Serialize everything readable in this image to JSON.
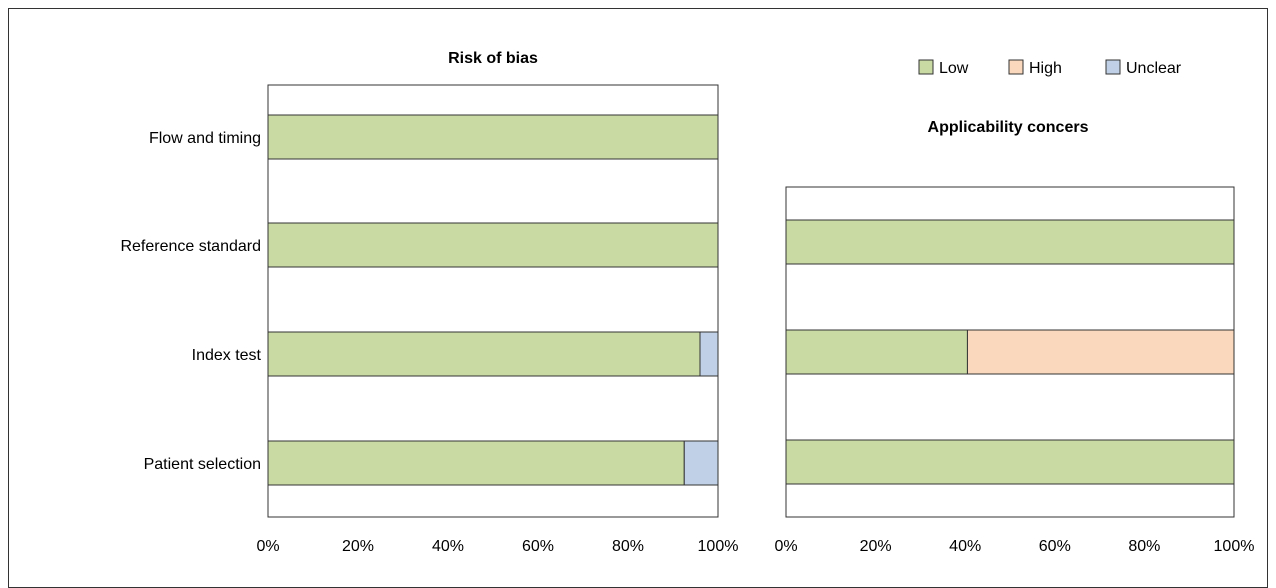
{
  "legend": {
    "items": [
      {
        "label": "Low",
        "color": "#c9dba3"
      },
      {
        "label": "High",
        "color": "#fad8bd"
      },
      {
        "label": "Unclear",
        "color": "#c0d0e6"
      }
    ]
  },
  "chart_data": [
    {
      "type": "bar",
      "orientation": "horizontal",
      "stacked": true,
      "title": "Risk of bias",
      "categories": [
        "Flow and timing",
        "Reference standard",
        "Index test",
        "Patient selection"
      ],
      "series": [
        {
          "name": "Low",
          "values": [
            100,
            100,
            96,
            92.5
          ]
        },
        {
          "name": "High",
          "values": [
            0,
            0,
            0,
            0
          ]
        },
        {
          "name": "Unclear",
          "values": [
            0,
            0,
            4,
            7.5
          ]
        }
      ],
      "xlim": [
        0,
        100
      ],
      "xticks": [
        "0%",
        "20%",
        "40%",
        "60%",
        "80%",
        "100%"
      ],
      "grid": false
    },
    {
      "type": "bar",
      "orientation": "horizontal",
      "stacked": true,
      "title": "Applicability concers",
      "categories": [
        "Reference standard",
        "Index test",
        "Patient selection"
      ],
      "series": [
        {
          "name": "Low",
          "values": [
            100,
            40.5,
            100
          ]
        },
        {
          "name": "High",
          "values": [
            0,
            59.5,
            0
          ]
        },
        {
          "name": "Unclear",
          "values": [
            0,
            0,
            0
          ]
        }
      ],
      "xlim": [
        0,
        100
      ],
      "xticks": [
        "0%",
        "20%",
        "40%",
        "60%",
        "80%",
        "100%"
      ],
      "grid": false
    }
  ]
}
